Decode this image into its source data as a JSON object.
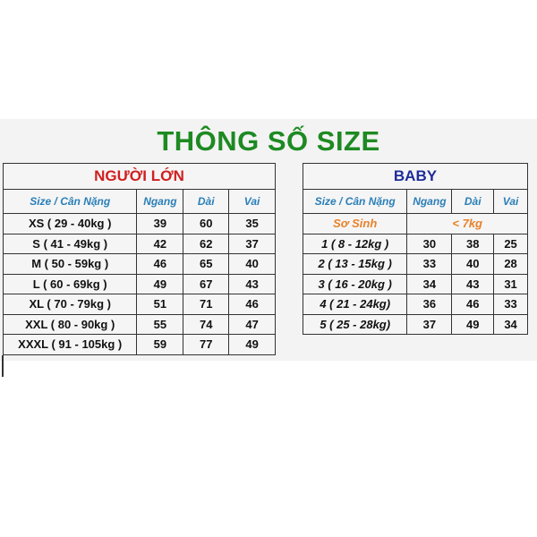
{
  "title": "THÔNG SỐ SIZE",
  "colors": {
    "title": "#1d8a22",
    "adult_header": "#d01f1f",
    "baby_header": "#1f2d9a",
    "column_header": "#2a7fb8",
    "newborn": "#e8822a"
  },
  "adult": {
    "heading": "NGƯỜI LỚN",
    "columns": [
      "Size / Cân Nặng",
      "Ngang",
      "Dài",
      "Vai"
    ],
    "rows": [
      [
        "XS ( 29 - 40kg )",
        "39",
        "60",
        "35"
      ],
      [
        "S ( 41 - 49kg )",
        "42",
        "62",
        "37"
      ],
      [
        "M ( 50 - 59kg )",
        "46",
        "65",
        "40"
      ],
      [
        "L ( 60 - 69kg )",
        "49",
        "67",
        "43"
      ],
      [
        "XL ( 70 - 79kg )",
        "51",
        "71",
        "46"
      ],
      [
        "XXL ( 80 - 90kg )",
        "55",
        "74",
        "47"
      ],
      [
        "XXXL ( 91 - 105kg )",
        "59",
        "77",
        "49"
      ]
    ]
  },
  "baby": {
    "heading": "BABY",
    "columns": [
      "Size / Cân Nặng",
      "Ngang",
      "Dài",
      "Vai"
    ],
    "newborn": {
      "label": "Sơ Sinh",
      "value": "< 7kg"
    },
    "rows": [
      [
        "1 ( 8 - 12kg )",
        "30",
        "38",
        "25"
      ],
      [
        "2 ( 13 - 15kg )",
        "33",
        "40",
        "28"
      ],
      [
        "3 ( 16 - 20kg )",
        "34",
        "43",
        "31"
      ],
      [
        "4 ( 21 - 24kg)",
        "36",
        "46",
        "33"
      ],
      [
        "5 ( 25 - 28kg)",
        "37",
        "49",
        "34"
      ]
    ]
  }
}
